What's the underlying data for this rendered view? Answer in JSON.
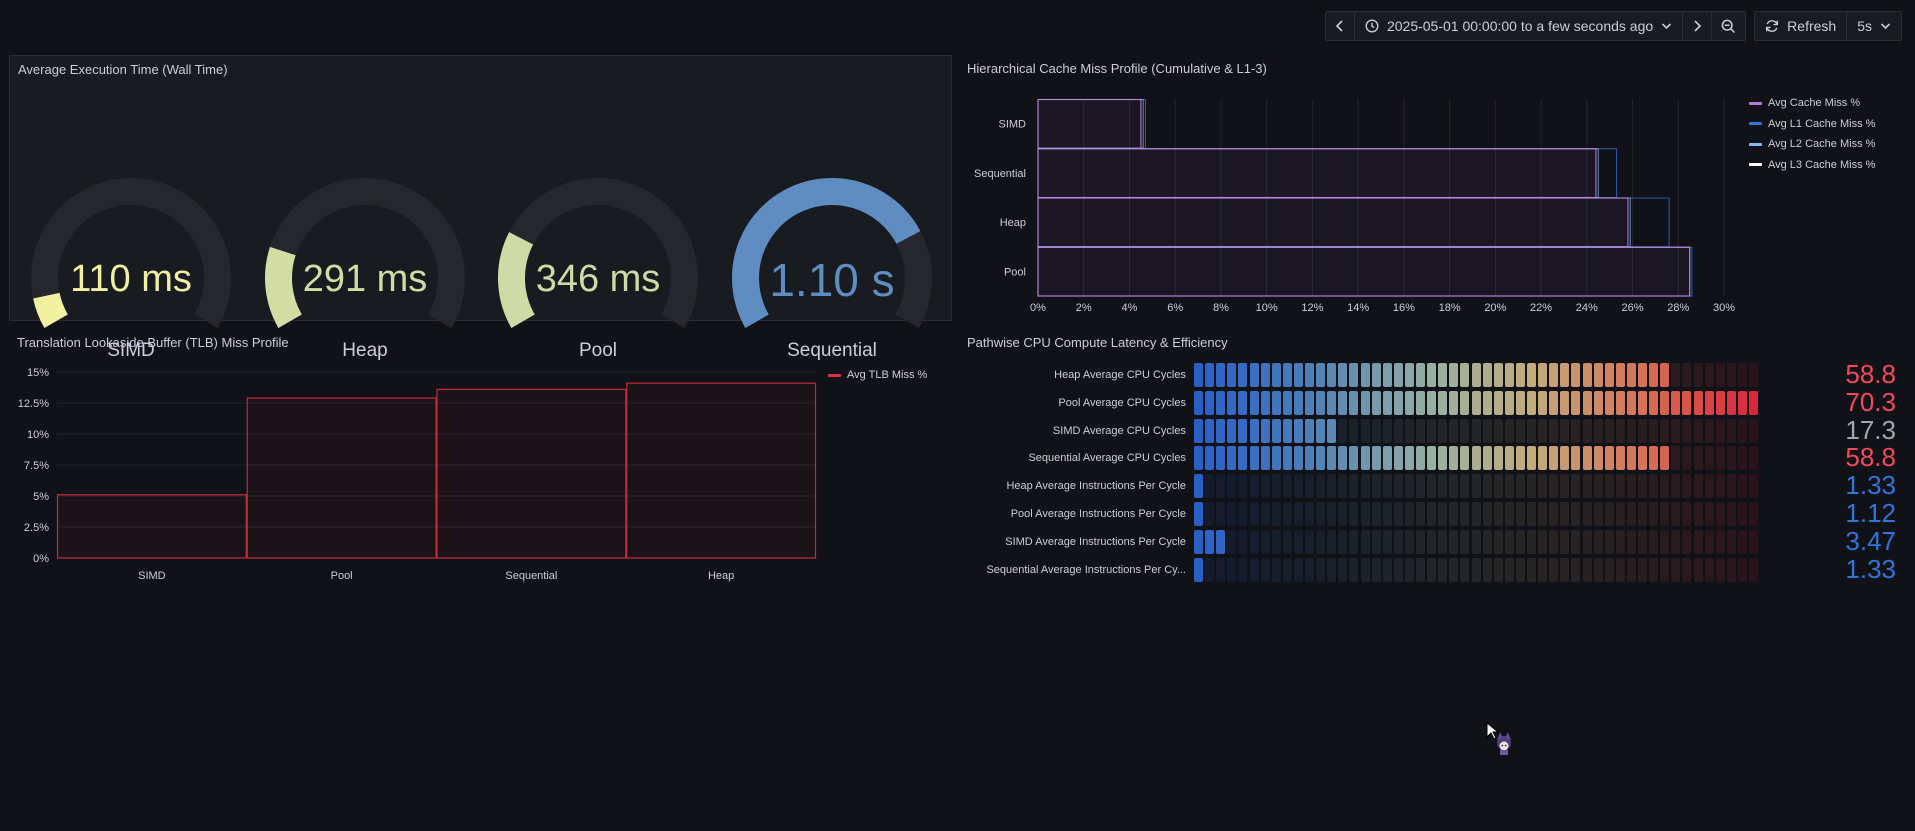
{
  "toolbar": {
    "time_range": "2025-05-01 00:00:00 to a few seconds ago",
    "refresh_label": "Refresh",
    "refresh_interval": "5s",
    "icons": [
      "chevron-left-icon",
      "clock-icon",
      "chevron-down-icon",
      "chevron-right-icon",
      "zoom-out-icon",
      "refresh-icon",
      "chevron-down-icon"
    ]
  },
  "panels": {
    "exec_time": {
      "title": "Average Execution Time (Wall Time)",
      "gauges": [
        {
          "label": "SIMD",
          "value_text": "110 ms",
          "value_ms": 110,
          "color": "#f2f0a1"
        },
        {
          "label": "Heap",
          "value_text": "291 ms",
          "value_ms": 291,
          "color": "#d3dca3"
        },
        {
          "label": "Pool",
          "value_text": "346 ms",
          "value_ms": 346,
          "color": "#cfdaa6"
        },
        {
          "label": "Sequential",
          "value_text": "1.10 s",
          "value_ms": 1100,
          "color": "#5f8dc2"
        }
      ],
      "gauge_max_ms": 1450
    },
    "cache": {
      "title": "Hierarchical Cache Miss Profile (Cumulative & L1-3)"
    },
    "tlb": {
      "title": "Translation Lookaside Buffer (TLB) Miss Profile"
    },
    "cpu": {
      "title": "Pathwise CPU Compute Latency & Efficiency"
    }
  },
  "chart_data": [
    {
      "type": "bar",
      "orientation": "horizontal",
      "categories": [
        "SIMD",
        "Sequential",
        "Heap",
        "Pool"
      ],
      "series": [
        {
          "name": "Avg Cache Miss %",
          "values": [
            4.5,
            24.4,
            25.8,
            28.5
          ],
          "color": "#b877d9"
        },
        {
          "name": "Avg L1 Cache Miss %",
          "values": [
            4.7,
            25.3,
            27.6,
            28.6
          ],
          "color": "#3274d9"
        },
        {
          "name": "Avg L2 Cache Miss %",
          "values": [
            4.6,
            24.5,
            25.9,
            28.5
          ],
          "color": "#8ab8ff"
        },
        {
          "name": "Avg L3 Cache Miss %",
          "values": [
            4.5,
            24.4,
            25.8,
            28.5
          ],
          "color": "#ffffff"
        }
      ],
      "xlim": [
        0,
        30
      ],
      "xticks": [
        "0%",
        "2%",
        "4%",
        "6%",
        "8%",
        "10%",
        "12%",
        "14%",
        "16%",
        "18%",
        "20%",
        "22%",
        "24%",
        "26%",
        "28%",
        "30%"
      ],
      "grid": true,
      "legend": "right"
    },
    {
      "type": "bar",
      "categories": [
        "SIMD",
        "Pool",
        "Sequential",
        "Heap"
      ],
      "series": [
        {
          "name": "Avg TLB Miss %",
          "values": [
            5.1,
            12.9,
            13.6,
            14.1
          ],
          "color": "#e02f44"
        }
      ],
      "ylim": [
        0,
        15
      ],
      "yticks": [
        "0%",
        "2.5%",
        "5%",
        "7.5%",
        "10%",
        "12.5%",
        "15%"
      ],
      "grid": true,
      "legend": "right"
    },
    {
      "type": "bar",
      "style": "bar-gauge-lcd",
      "categories": [
        "Heap Average CPU Cycles",
        "Pool Average CPU Cycles",
        "SIMD Average CPU Cycles",
        "Sequential Average CPU Cycles",
        "Heap Average Instructions Per Cycle",
        "Pool Average Instructions Per Cycle",
        "SIMD Average Instructions Per Cycle",
        "Sequential Average Instructions Per Cy..."
      ],
      "values": [
        58.8,
        70.3,
        17.3,
        58.8,
        1.33,
        1.12,
        3.47,
        1.33
      ],
      "value_texts": [
        "58.8",
        "70.3",
        "17.3",
        "58.8",
        "1.33",
        "1.12",
        "3.47",
        "1.33"
      ],
      "colors": [
        "#f2495c",
        "#f2495c",
        "#9fa7b3",
        "#f2495c",
        "#3274d9",
        "#3274d9",
        "#3274d9",
        "#3274d9"
      ],
      "max": [
        70.3,
        70.3,
        70.3,
        70.3,
        60,
        60,
        60,
        60
      ]
    }
  ]
}
